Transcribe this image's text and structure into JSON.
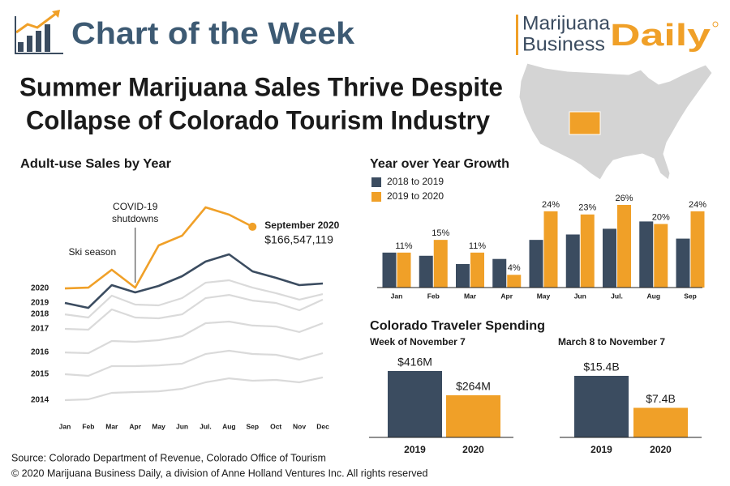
{
  "header": {
    "title": "Chart of the Week",
    "logo": [
      "Marijuana",
      "Business",
      "Daily"
    ]
  },
  "title": [
    "Summer Marijuana Sales Thrive Despite",
    "Collapse of Colorado Tourism Industry"
  ],
  "chart_data": [
    {
      "type": "line",
      "title": "Adult-use Sales by Year",
      "categories": [
        "Jan",
        "Feb",
        "Mar",
        "Apr",
        "May",
        "Jun",
        "Jul.",
        "Aug",
        "Sep",
        "Oct",
        "Nov",
        "Dec"
      ],
      "series": [
        {
          "name": "2014",
          "color": "#dadada",
          "values": [
            14000000,
            14700000,
            20400000,
            21100000,
            21800000,
            24000000,
            29700000,
            33200000,
            31100000,
            31800000,
            29700000,
            34000000
          ]
        },
        {
          "name": "2015",
          "color": "#dadada",
          "values": [
            36800000,
            35400000,
            43900000,
            43900000,
            44600000,
            46100000,
            54600000,
            57500000,
            54600000,
            53900000,
            49600000,
            55300000
          ]
        },
        {
          "name": "2016",
          "color": "#dadada",
          "values": [
            56000000,
            55300000,
            66000000,
            65300000,
            66700000,
            70300000,
            81700000,
            83100000,
            79600000,
            78800000,
            73900000,
            81700000
          ]
        },
        {
          "name": "2017",
          "color": "#dadada",
          "values": [
            76700000,
            76000000,
            93800000,
            86700000,
            86000000,
            89500000,
            103800000,
            106600000,
            101600000,
            99500000,
            93100000,
            102400000
          ]
        },
        {
          "name": "2018",
          "color": "#dadada",
          "values": [
            89500000,
            86700000,
            105900000,
            98100000,
            97400000,
            103800000,
            117300000,
            119500000,
            113000000,
            108100000,
            102400000,
            107300000
          ]
        },
        {
          "name": "2019",
          "color": "#3b4c60",
          "values": [
            99500000,
            95200000,
            115200000,
            108800000,
            114500000,
            123000000,
            135900000,
            142300000,
            127300000,
            121600000,
            115200000,
            116600000
          ]
        },
        {
          "name": "2020",
          "color": "#f0a028",
          "values": [
            112300000,
            113000000,
            128700000,
            113000000,
            150100000,
            158700000,
            183600000,
            177200000,
            166547119,
            null,
            null,
            null
          ],
          "value_labels": [
            null,
            null,
            null,
            null,
            null,
            null,
            null,
            null,
            "$166,547,119",
            null,
            null,
            null
          ]
        }
      ],
      "annotations": [
        [
          "Ski season"
        ],
        [
          "COVID-19",
          "shutdowns"
        ],
        [
          "September 2020"
        ]
      ]
    },
    {
      "type": "bar",
      "title": "Year over Year Growth",
      "legend": "top-left",
      "categories": [
        "Jan",
        "Feb",
        "Mar",
        "Apr",
        "May",
        "Jun",
        "Jul.",
        "Aug",
        "Sep"
      ],
      "series": [
        {
          "name": "2018 to 2019",
          "color": "#3b4c60",
          "values": [
            11,
            10,
            7.4,
            9,
            15,
            16.7,
            18.5,
            20.8,
            15.4
          ]
        },
        {
          "name": "2019 to 2020",
          "color": "#f0a028",
          "values": [
            11,
            15,
            11,
            4,
            24,
            23,
            26,
            20,
            24
          ],
          "value_labels": [
            "11%",
            "15%",
            "11%",
            "4%",
            "24%",
            "23%",
            "26%",
            "20%",
            "24%"
          ]
        }
      ]
    },
    {
      "type": "bar",
      "subtitle": "Week of November 7",
      "categories": [
        "2019",
        "2020"
      ],
      "values": [
        416000000,
        264000000
      ],
      "value_labels": [
        "$416M",
        "$264M"
      ],
      "colors": [
        "#3b4c60",
        "#f0a028"
      ]
    },
    {
      "type": "bar",
      "subtitle": "March 8 to November 7",
      "categories": [
        "2019",
        "2020"
      ],
      "values": [
        15400000000,
        7400000000
      ],
      "value_labels": [
        "$15.4B",
        "$7.4B"
      ],
      "colors": [
        "#3b4c60",
        "#f0a028"
      ]
    }
  ],
  "section_title": "Colorado Traveler Spending",
  "footer": [
    "Source: Colorado Department of Revenue, Colorado Office of Tourism",
    "© 2020 Marijuana Business Daily, a division of Anne Holland Ventures Inc. All rights reserved"
  ]
}
